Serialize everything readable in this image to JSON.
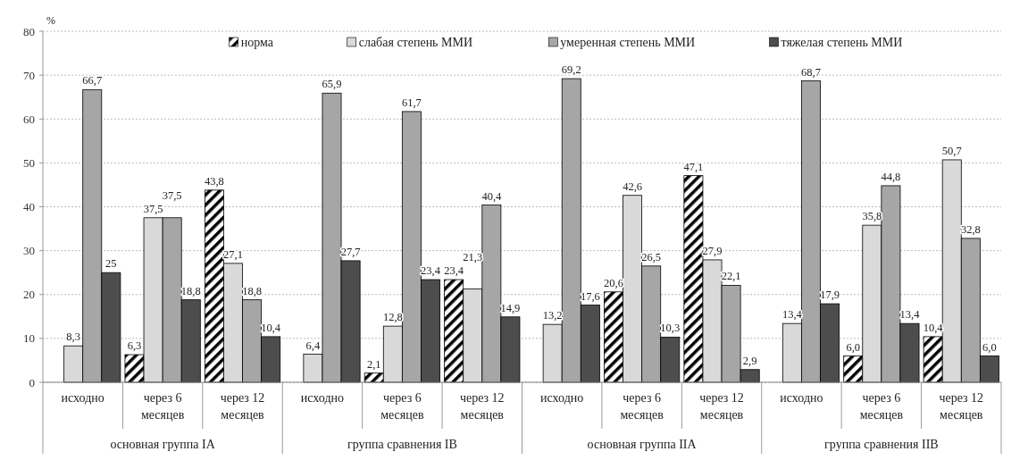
{
  "chart_data": {
    "type": "bar",
    "ylabel": "%",
    "categories": [
      "исходно",
      "через 6 месяцев",
      "через 12 месяцев",
      "исходно",
      "через 6 месяцев",
      "через 12 месяцев",
      "исходно",
      "через 6 месяцев",
      "через 12 месяцев",
      "исходно",
      "через 6 месяцев",
      "через 12 месяцев"
    ],
    "annotations": [
      "основная группа IA",
      "группа сравнения IB",
      "основная группа IIA",
      "группа сравнения IIB"
    ],
    "series": [
      {
        "name": "норма",
        "color": "#000000",
        "values": [
          null,
          6.3,
          43.8,
          null,
          2.1,
          23.4,
          null,
          20.6,
          47.1,
          null,
          6.0,
          10.4
        ],
        "value_labels": [
          null,
          "6,3",
          "43,8",
          null,
          "2,1",
          "23,4",
          null,
          "20,6",
          "47,1",
          null,
          "6,0",
          "10,4"
        ]
      },
      {
        "name": "слабая степень ММИ",
        "color": "#d9d9d9",
        "values": [
          8.3,
          37.5,
          27.1,
          6.4,
          12.8,
          21.3,
          13.2,
          42.6,
          27.9,
          13.4,
          35.8,
          50.7
        ],
        "value_labels": [
          "8,3",
          "37,5",
          "27,1",
          "6,4",
          "12,8",
          "21,3",
          "13,2",
          "42,6",
          "27,9",
          "13,4",
          "35,8",
          "50,7"
        ]
      },
      {
        "name": "умеренная степень ММИ",
        "color": "#a6a6a6",
        "values": [
          66.7,
          37.5,
          18.8,
          65.9,
          61.7,
          40.4,
          69.2,
          26.5,
          22.1,
          68.7,
          44.8,
          32.8
        ],
        "value_labels": [
          "66,7",
          "37,5",
          "18,8",
          "65,9",
          "61,7",
          "40,4",
          "69,2",
          "26,5",
          "22,1",
          "68,7",
          "44,8",
          "32,8"
        ]
      },
      {
        "name": "тяжелая степень ММИ",
        "color": "#4d4d4d",
        "values": [
          25,
          18.8,
          10.4,
          27.7,
          23.4,
          14.9,
          17.6,
          10.3,
          2.9,
          17.9,
          13.4,
          6.0
        ],
        "value_labels": [
          "25",
          "18,8",
          "10,4",
          "27,7",
          "23,4",
          "14,9",
          "17,6",
          "10,3",
          "2,9",
          "17,9",
          "13,4",
          "6,0"
        ]
      }
    ],
    "ylim": [
      0,
      80
    ],
    "yticks": [
      0,
      10,
      20,
      30,
      40,
      50,
      60,
      70,
      80
    ],
    "grid": "y",
    "legend": "top"
  }
}
